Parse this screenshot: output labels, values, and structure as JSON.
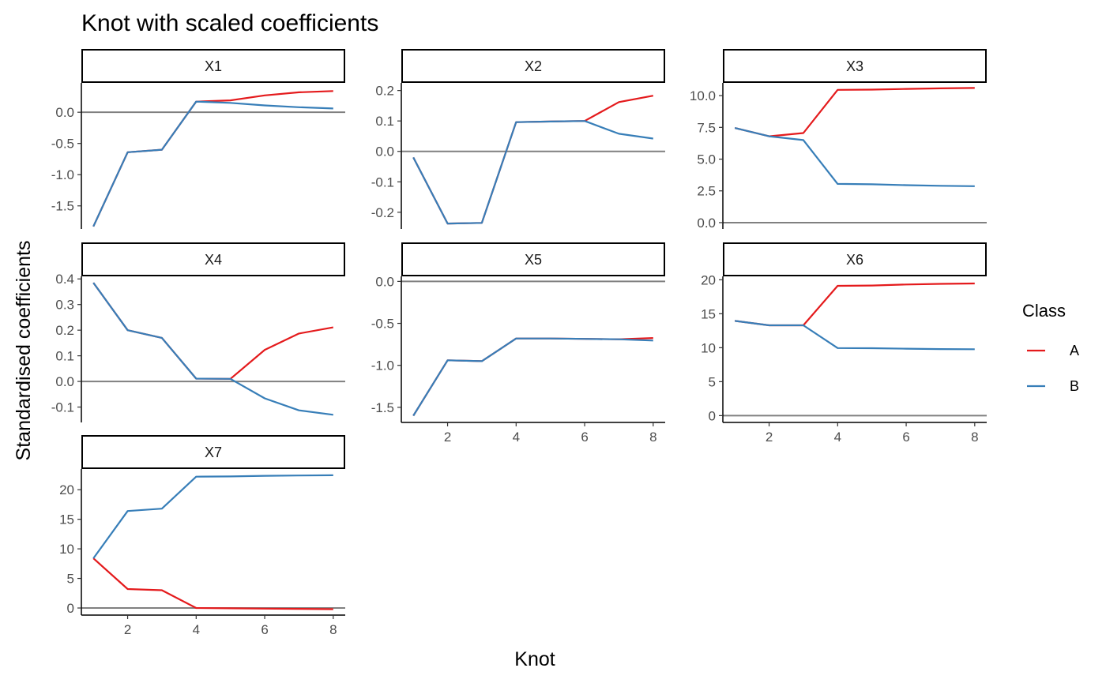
{
  "chart_data": {
    "type": "line",
    "title": "Knot with scaled coefficients",
    "xlabel": "Knot",
    "ylabel": "Standardised coefficients",
    "x": [
      1,
      2,
      3,
      4,
      5,
      6,
      7,
      8
    ],
    "xticks": [
      2,
      4,
      6,
      8
    ],
    "reference_line_y": 0,
    "legend": {
      "title": "Class",
      "placement": "right",
      "entries": [
        {
          "label": "A",
          "color": "#e41a1c"
        },
        {
          "label": "B",
          "color": "#377eb8"
        }
      ]
    },
    "panels": [
      {
        "label": "X1",
        "ylim": [
          -1.87,
          0.47
        ],
        "yticks": [
          {
            "value": 0.0,
            "label": "0.0"
          },
          {
            "value": -0.5,
            "label": "-0.5"
          },
          {
            "value": -1.0,
            "label": "-1.0"
          },
          {
            "value": -1.5,
            "label": "-1.5"
          }
        ],
        "series": [
          {
            "key": "A",
            "values": [
              -1.83,
              -0.64,
              -0.6,
              0.17,
              0.19,
              0.27,
              0.32,
              0.34
            ]
          },
          {
            "key": "B",
            "values": [
              -1.83,
              -0.64,
              -0.6,
              0.17,
              0.15,
              0.11,
              0.08,
              0.06
            ]
          }
        ]
      },
      {
        "label": "X2",
        "ylim": [
          -0.255,
          0.225
        ],
        "yticks": [
          {
            "value": 0.2,
            "label": "0.2"
          },
          {
            "value": 0.1,
            "label": "0.1"
          },
          {
            "value": 0.0,
            "label": "0.0"
          },
          {
            "value": -0.1,
            "label": "-0.1"
          },
          {
            "value": -0.2,
            "label": "-0.2"
          }
        ],
        "series": [
          {
            "key": "A",
            "values": [
              -0.02,
              -0.237,
              -0.235,
              0.096,
              0.098,
              0.1,
              0.162,
              0.183
            ]
          },
          {
            "key": "B",
            "values": [
              -0.02,
              -0.237,
              -0.235,
              0.096,
              0.098,
              0.1,
              0.058,
              0.042
            ]
          }
        ]
      },
      {
        "label": "X3",
        "ylim": [
          -0.5,
          11.0
        ],
        "yticks": [
          {
            "value": 10.0,
            "label": "10.0"
          },
          {
            "value": 7.5,
            "label": "7.5"
          },
          {
            "value": 5.0,
            "label": "5.0"
          },
          {
            "value": 2.5,
            "label": "2.5"
          },
          {
            "value": 0.0,
            "label": "0.0"
          }
        ],
        "series": [
          {
            "key": "A",
            "values": [
              7.45,
              6.8,
              7.05,
              10.45,
              10.47,
              10.53,
              10.57,
              10.6
            ]
          },
          {
            "key": "B",
            "values": [
              7.45,
              6.8,
              6.5,
              3.05,
              3.02,
              2.95,
              2.9,
              2.87
            ]
          }
        ]
      },
      {
        "label": "X4",
        "ylim": [
          -0.16,
          0.41
        ],
        "yticks": [
          {
            "value": 0.4,
            "label": "0.4"
          },
          {
            "value": 0.3,
            "label": "0.3"
          },
          {
            "value": 0.2,
            "label": "0.2"
          },
          {
            "value": 0.1,
            "label": "0.1"
          },
          {
            "value": 0.0,
            "label": "0.0"
          },
          {
            "value": -0.1,
            "label": "-0.1"
          }
        ],
        "series": [
          {
            "key": "A",
            "values": [
              0.385,
              0.2,
              0.17,
              0.011,
              0.01,
              0.123,
              0.187,
              0.211
            ]
          },
          {
            "key": "B",
            "values": [
              0.385,
              0.2,
              0.17,
              0.011,
              0.01,
              -0.066,
              -0.113,
              -0.13
            ]
          }
        ]
      },
      {
        "label": "X5",
        "ylim": [
          -1.68,
          0.06
        ],
        "yticks": [
          {
            "value": 0.0,
            "label": "0.0"
          },
          {
            "value": -0.5,
            "label": "-0.5"
          },
          {
            "value": -1.0,
            "label": "-1.0"
          },
          {
            "value": -1.5,
            "label": "-1.5"
          }
        ],
        "series": [
          {
            "key": "A",
            "values": [
              -1.6,
              -0.94,
              -0.95,
              -0.68,
              -0.68,
              -0.685,
              -0.69,
              -0.675
            ]
          },
          {
            "key": "B",
            "values": [
              -1.6,
              -0.94,
              -0.95,
              -0.68,
              -0.68,
              -0.685,
              -0.69,
              -0.705
            ]
          }
        ]
      },
      {
        "label": "X6",
        "ylim": [
          -1.0,
          20.5
        ],
        "yticks": [
          {
            "value": 20,
            "label": "20"
          },
          {
            "value": 15,
            "label": "15"
          },
          {
            "value": 10,
            "label": "10"
          },
          {
            "value": 5,
            "label": "5"
          },
          {
            "value": 0,
            "label": "0"
          }
        ],
        "series": [
          {
            "key": "A",
            "values": [
              13.95,
              13.3,
              13.3,
              19.1,
              19.15,
              19.3,
              19.4,
              19.45
            ]
          },
          {
            "key": "B",
            "values": [
              13.95,
              13.3,
              13.3,
              9.95,
              9.93,
              9.85,
              9.8,
              9.77
            ]
          }
        ]
      },
      {
        "label": "X7",
        "ylim": [
          -1.2,
          23.5
        ],
        "yticks": [
          {
            "value": 20,
            "label": "20"
          },
          {
            "value": 15,
            "label": "15"
          },
          {
            "value": 10,
            "label": "10"
          },
          {
            "value": 5,
            "label": "5"
          },
          {
            "value": 0,
            "label": "0"
          }
        ],
        "series": [
          {
            "key": "A",
            "values": [
              8.4,
              3.2,
              3.0,
              0.0,
              -0.05,
              -0.1,
              -0.15,
              -0.2
            ]
          },
          {
            "key": "B",
            "values": [
              8.4,
              16.4,
              16.8,
              22.2,
              22.25,
              22.35,
              22.4,
              22.45
            ]
          }
        ]
      }
    ]
  }
}
